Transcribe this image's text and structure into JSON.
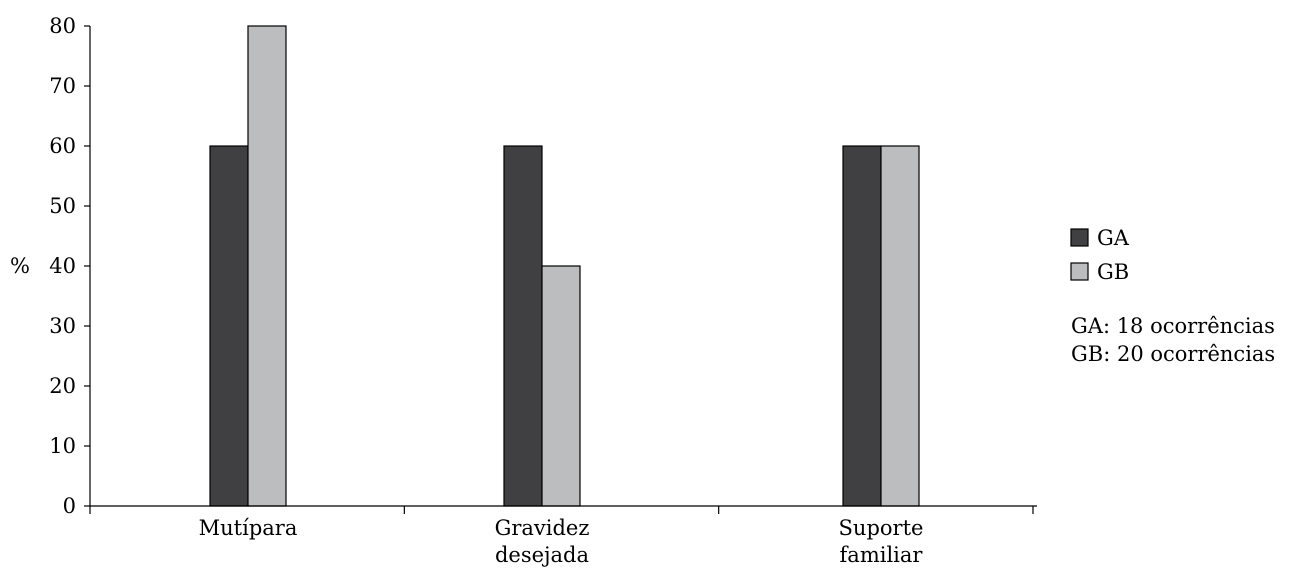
{
  "chart_data": {
    "type": "bar",
    "categories": [
      [
        "Mutípara"
      ],
      [
        "Gravidez",
        "desejada"
      ],
      [
        "Suporte",
        "familiar"
      ]
    ],
    "series": [
      {
        "name": "GA",
        "values": [
          60,
          60,
          60
        ],
        "color": "#404042"
      },
      {
        "name": "GB",
        "values": [
          80,
          40,
          60
        ],
        "color": "#bcbdbf"
      }
    ],
    "ylabel": "%",
    "ylim": [
      0,
      80
    ],
    "yticks": [
      0,
      10,
      20,
      30,
      40,
      50,
      60,
      70,
      80
    ],
    "grid": false,
    "legend": "right"
  },
  "annotations": [
    "GA: 18 ocorrências",
    "GB: 20 ocorrências"
  ]
}
